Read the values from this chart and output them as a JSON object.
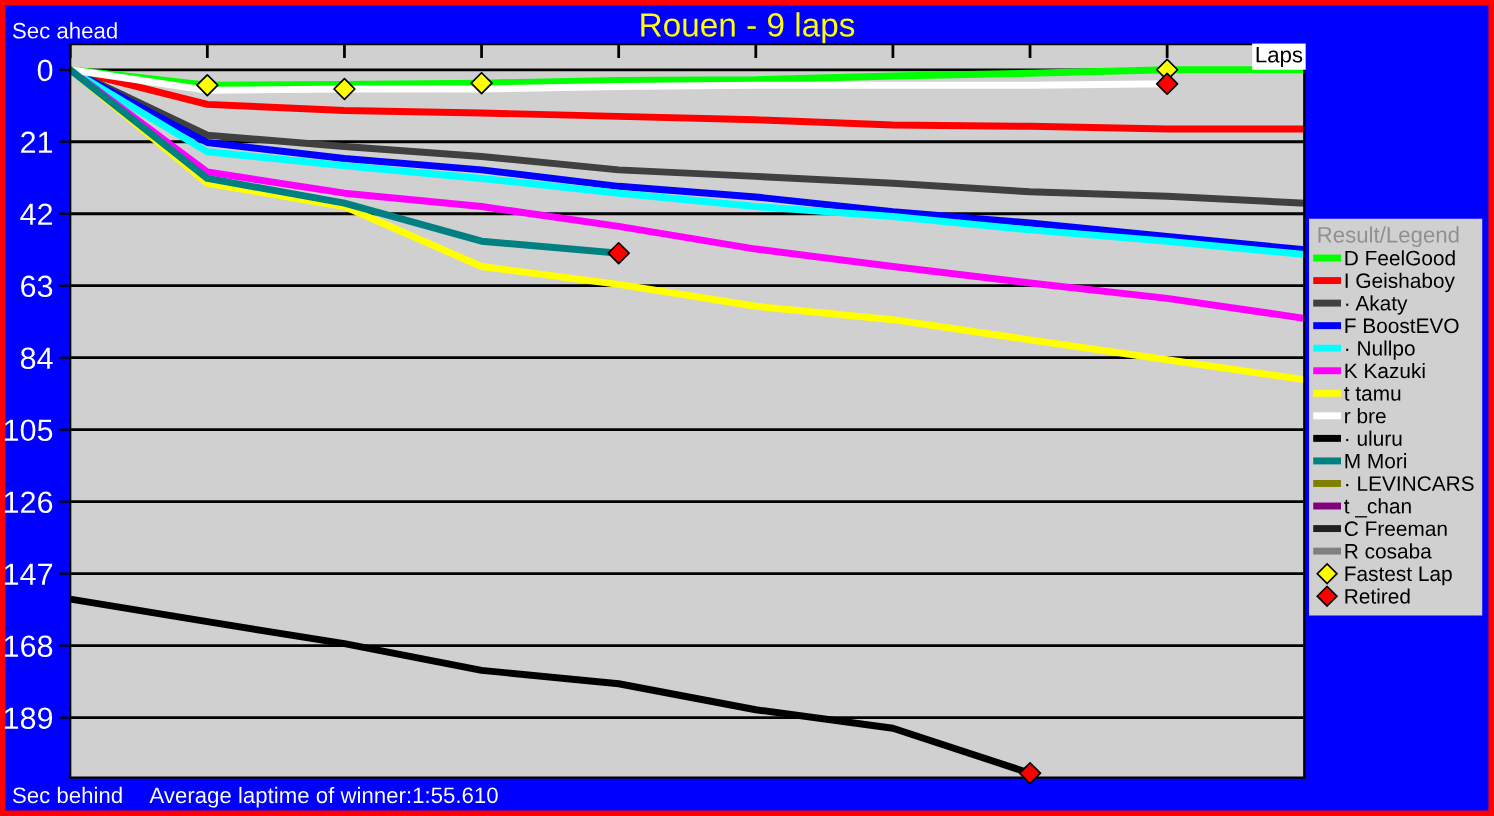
{
  "chart_data": {
    "type": "line",
    "title": "Rouen - 9 laps",
    "ylabel": "Sec ahead",
    "xlabel": "Laps",
    "legend_title": "Result/Legend",
    "annotations": [
      "Sec behind",
      "Average laptime of winner:1:55.610"
    ],
    "categories": [
      null,
      null,
      null,
      null,
      null,
      null,
      null,
      null,
      null,
      null
    ],
    "series": [
      {
        "name": "D FeelGood",
        "color": "#00ff00",
        "values": [
          0,
          4.5,
          4.3,
          3.9,
          3.1,
          2.9,
          1.8,
          1.0,
          0,
          0
        ]
      },
      {
        "name": "I Geishaboy",
        "color": "#ff0000",
        "values": [
          0,
          10.1,
          11.9,
          12.6,
          13.6,
          14.6,
          16.1,
          16.5,
          17.3,
          17.3
        ]
      },
      {
        "name": "· Akaty",
        "color": "#404040",
        "values": [
          0,
          19.1,
          22.4,
          25.3,
          29.2,
          31.1,
          33.1,
          35.6,
          36.9,
          38.9
        ]
      },
      {
        "name": "F BoostEVO",
        "color": "#0000ff",
        "values": [
          0,
          21.2,
          25.9,
          29.2,
          34.0,
          37.1,
          41.4,
          44.7,
          48.6,
          52.5
        ]
      },
      {
        "name": "· Nullpo",
        "color": "#00ffff",
        "values": [
          0,
          23.9,
          28.0,
          31.7,
          36.0,
          39.9,
          42.8,
          46.7,
          50.0,
          53.9
        ]
      },
      {
        "name": "K Kazuki",
        "color": "#ff00ff",
        "values": [
          0,
          29.8,
          36.0,
          39.9,
          45.7,
          52.3,
          57.4,
          62.2,
          66.7,
          72.5
        ]
      },
      {
        "name": "t tamu",
        "color": "#ffff00",
        "values": [
          0,
          33.1,
          39.9,
          57.4,
          62.6,
          69.0,
          72.9,
          78.8,
          84.6,
          90.4
        ]
      },
      {
        "name": "r bre",
        "color": "#ffffff",
        "values": [
          0,
          6.0,
          5.6,
          5.6,
          4.9,
          4.5,
          4.5,
          4.5,
          4.1,
          null
        ]
      },
      {
        "name": "· uluru",
        "color": "#000000",
        "values": [
          154.4,
          161.0,
          167.4,
          175.2,
          179.1,
          186.7,
          192.1,
          205.2,
          null,
          null
        ]
      },
      {
        "name": "M Mori",
        "color": "#008080",
        "values": [
          0,
          31.7,
          38.9,
          50.0,
          53.5,
          null,
          null,
          null,
          null,
          null
        ]
      },
      {
        "name": "· LEVINCARS",
        "color": "#808000",
        "values": [
          null,
          null,
          null,
          null,
          null,
          null,
          null,
          null,
          null,
          null
        ]
      },
      {
        "name": "t _chan",
        "color": "#800080",
        "values": [
          null,
          null,
          null,
          null,
          null,
          null,
          null,
          null,
          null,
          null
        ]
      },
      {
        "name": "C Freeman",
        "color": "#202020",
        "values": [
          null,
          null,
          null,
          null,
          null,
          null,
          null,
          null,
          null,
          null
        ]
      },
      {
        "name": "R cosaba",
        "color": "#808080",
        "values": [
          null,
          null,
          null,
          null,
          null,
          null,
          null,
          null,
          null,
          null
        ]
      },
      {
        "name": "Fastest Lap",
        "type": "scatter",
        "marker": "diamond",
        "color": "#ffff00",
        "values": [
          null,
          4.5,
          5.6,
          3.9,
          null,
          null,
          null,
          null,
          0,
          null
        ]
      },
      {
        "name": "Retired",
        "type": "scatter",
        "marker": "diamond",
        "color": "#ff0000",
        "values": [
          null,
          null,
          null,
          null,
          53.5,
          null,
          null,
          205.2,
          4.1,
          null
        ]
      }
    ],
    "ylim": [
      206.5,
      -7.5
    ],
    "yticks": [
      0,
      21,
      42,
      63,
      84,
      105,
      126,
      147,
      168,
      189
    ],
    "grid": "y",
    "legend": "right",
    "marker": "none",
    "line_style": "solid",
    "tick_labels": "y"
  }
}
